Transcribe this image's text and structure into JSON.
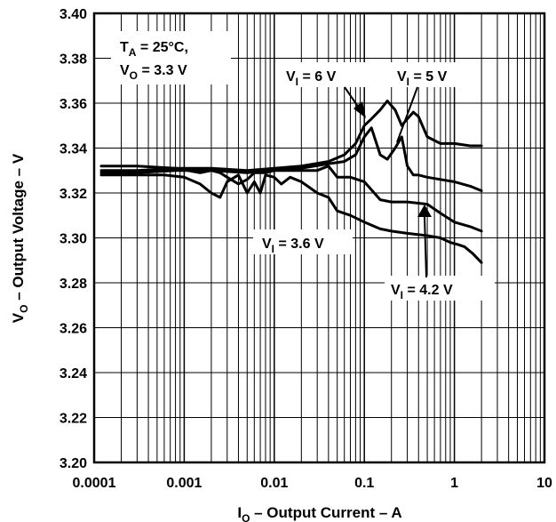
{
  "chart_data": {
    "type": "line",
    "xscale": "log",
    "xlim": [
      0.0001,
      10
    ],
    "ylim": [
      3.2,
      3.4
    ],
    "grid": true,
    "xticks": [
      "0.0001",
      "0.001",
      "0.01",
      "0.1",
      "1",
      "10"
    ],
    "yticks": [
      "3.20",
      "3.22",
      "3.24",
      "3.26",
      "3.28",
      "3.30",
      "3.32",
      "3.34",
      "3.36",
      "3.38",
      "3.40"
    ],
    "xlabel": {
      "main": "I",
      "sub": "O",
      "rest": " – Output Current – A"
    },
    "ylabel": {
      "main": "V",
      "sub": "O",
      "rest": " – Output Voltage – V"
    },
    "conditions": {
      "line1": {
        "main": "T",
        "sub": "A",
        "rest": " = 25°C,"
      },
      "line2": {
        "main": "V",
        "sub": "O",
        "rest": " = 3.3 V"
      }
    },
    "series": [
      {
        "name": "VI = 6 V",
        "label": {
          "main": "V",
          "sub": "I",
          "rest": " = 6 V"
        },
        "x": [
          0.00012,
          0.0003,
          0.0008,
          0.002,
          0.005,
          0.01,
          0.02,
          0.04,
          0.06,
          0.08,
          0.1,
          0.12,
          0.15,
          0.18,
          0.22,
          0.26,
          0.3,
          0.35,
          0.4,
          0.5,
          0.7,
          1.0,
          1.5,
          2.0
        ],
        "y": [
          3.33,
          3.33,
          3.331,
          3.331,
          3.33,
          3.331,
          3.332,
          3.334,
          3.337,
          3.342,
          3.35,
          3.353,
          3.357,
          3.361,
          3.357,
          3.35,
          3.353,
          3.356,
          3.354,
          3.345,
          3.342,
          3.342,
          3.341,
          3.341
        ]
      },
      {
        "name": "VI = 5 V",
        "label": {
          "main": "V",
          "sub": "I",
          "rest": " = 5 V"
        },
        "x": [
          0.00012,
          0.0003,
          0.0008,
          0.002,
          0.005,
          0.01,
          0.02,
          0.04,
          0.06,
          0.08,
          0.1,
          0.12,
          0.15,
          0.18,
          0.22,
          0.26,
          0.3,
          0.35,
          0.4,
          0.5,
          0.7,
          1.0,
          1.5,
          2.0
        ],
        "y": [
          3.329,
          3.329,
          3.33,
          3.33,
          3.329,
          3.33,
          3.331,
          3.333,
          3.334,
          3.337,
          3.345,
          3.349,
          3.337,
          3.335,
          3.34,
          3.345,
          3.332,
          3.328,
          3.328,
          3.327,
          3.326,
          3.325,
          3.323,
          3.321
        ]
      },
      {
        "name": "VI = 4.2 V",
        "label": {
          "main": "V",
          "sub": "I",
          "rest": " = 4.2 V"
        },
        "x": [
          0.00012,
          0.0003,
          0.0008,
          0.0015,
          0.002,
          0.0025,
          0.003,
          0.004,
          0.005,
          0.006,
          0.008,
          0.01,
          0.015,
          0.02,
          0.03,
          0.04,
          0.05,
          0.07,
          0.1,
          0.15,
          0.2,
          0.3,
          0.5,
          0.7,
          1.0,
          1.5,
          2.0
        ],
        "y": [
          3.332,
          3.332,
          3.331,
          3.329,
          3.33,
          3.329,
          3.327,
          3.324,
          3.326,
          3.329,
          3.329,
          3.33,
          3.33,
          3.33,
          3.33,
          3.332,
          3.327,
          3.327,
          3.325,
          3.317,
          3.316,
          3.316,
          3.315,
          3.311,
          3.307,
          3.305,
          3.303
        ]
      },
      {
        "name": "VI = 3.6 V",
        "label": {
          "main": "V",
          "sub": "I",
          "rest": " = 3.6 V"
        },
        "x": [
          0.00012,
          0.0003,
          0.0006,
          0.001,
          0.0015,
          0.002,
          0.0025,
          0.003,
          0.004,
          0.005,
          0.006,
          0.007,
          0.008,
          0.01,
          0.012,
          0.015,
          0.02,
          0.03,
          0.04,
          0.05,
          0.07,
          0.1,
          0.15,
          0.2,
          0.3,
          0.5,
          0.7,
          0.9,
          1.1,
          1.3,
          1.6,
          2.0
        ],
        "y": [
          3.328,
          3.328,
          3.328,
          3.327,
          3.324,
          3.32,
          3.318,
          3.325,
          3.328,
          3.32,
          3.325,
          3.32,
          3.328,
          3.327,
          3.324,
          3.327,
          3.325,
          3.32,
          3.318,
          3.312,
          3.31,
          3.307,
          3.304,
          3.303,
          3.302,
          3.301,
          3.3,
          3.298,
          3.297,
          3.296,
          3.293,
          3.289
        ]
      }
    ]
  }
}
